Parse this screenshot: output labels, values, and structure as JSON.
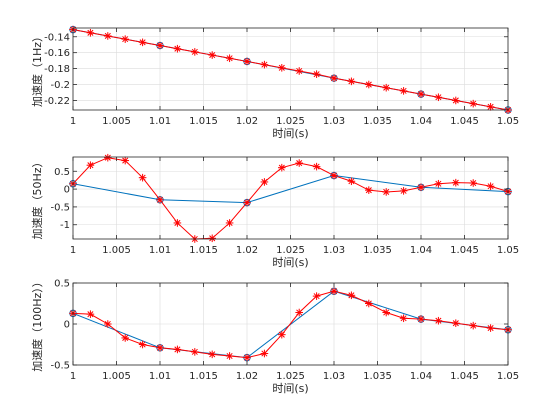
{
  "chart_data": [
    {
      "type": "line",
      "xlabel": "时间(s)",
      "ylabel": "加速度（1Hz）",
      "xlim": [
        1,
        1.05
      ],
      "ylim": [
        -0.232,
        -0.129
      ],
      "xticks": [
        1,
        1.005,
        1.01,
        1.015,
        1.02,
        1.025,
        1.03,
        1.035,
        1.04,
        1.045,
        1.05
      ],
      "xtick_labels": [
        "1",
        "1.005",
        "1.01",
        "1.015",
        "1.02",
        "1.025",
        "1.03",
        "1.035",
        "1.04",
        "1.045",
        "1.05"
      ],
      "yticks": [
        -0.14,
        -0.16,
        -0.18,
        -0.2,
        -0.22
      ],
      "ytick_labels": [
        "-0.14",
        "-0.16",
        "-0.18",
        "-0.2",
        "-0.22"
      ],
      "grid": true,
      "series": [
        {
          "color": "#0072bd",
          "marker": "o",
          "x": [
            1,
            1.01,
            1.02,
            1.03,
            1.04,
            1.05
          ],
          "y": [
            -0.131,
            -0.151,
            -0.171,
            -0.192,
            -0.212,
            -0.232
          ]
        },
        {
          "color": "#ff0000",
          "marker": "*",
          "x": [
            1,
            1.002,
            1.004,
            1.006,
            1.008,
            1.01,
            1.012,
            1.014,
            1.016,
            1.018,
            1.02,
            1.022,
            1.024,
            1.026,
            1.028,
            1.03,
            1.032,
            1.034,
            1.036,
            1.038,
            1.04,
            1.042,
            1.044,
            1.046,
            1.048,
            1.05
          ],
          "y": [
            -0.131,
            -0.135,
            -0.139,
            -0.143,
            -0.147,
            -0.151,
            -0.155,
            -0.159,
            -0.163,
            -0.167,
            -0.171,
            -0.175,
            -0.179,
            -0.183,
            -0.187,
            -0.192,
            -0.196,
            -0.2,
            -0.204,
            -0.208,
            -0.212,
            -0.216,
            -0.22,
            -0.224,
            -0.228,
            -0.232
          ]
        }
      ]
    },
    {
      "type": "line",
      "xlabel": "时间(s)",
      "ylabel": "加速度（50Hz）",
      "xlim": [
        1,
        1.05
      ],
      "ylim": [
        -1.4,
        0.9
      ],
      "xticks": [
        1,
        1.005,
        1.01,
        1.015,
        1.02,
        1.025,
        1.03,
        1.035,
        1.04,
        1.045,
        1.05
      ],
      "xtick_labels": [
        "1",
        "1.005",
        "1.01",
        "1.015",
        "1.02",
        "1.025",
        "1.03",
        "1.035",
        "1.04",
        "1.045",
        "1.05"
      ],
      "yticks": [
        0.5,
        0,
        -0.5,
        -1
      ],
      "ytick_labels": [
        "0.5",
        "0",
        "-0.5",
        "-1"
      ],
      "grid": true,
      "series": [
        {
          "color": "#0072bd",
          "marker": "o",
          "x": [
            1,
            1.01,
            1.02,
            1.03,
            1.04,
            1.05
          ],
          "y": [
            0.15,
            -0.3,
            -0.38,
            0.38,
            0.05,
            -0.07
          ]
        },
        {
          "color": "#ff0000",
          "marker": "*",
          "x": [
            1,
            1.002,
            1.004,
            1.006,
            1.008,
            1.01,
            1.012,
            1.014,
            1.016,
            1.018,
            1.02,
            1.022,
            1.024,
            1.026,
            1.028,
            1.03,
            1.032,
            1.034,
            1.036,
            1.038,
            1.04,
            1.042,
            1.044,
            1.046,
            1.048,
            1.05
          ],
          "y": [
            0.15,
            0.67,
            0.88,
            0.8,
            0.32,
            -0.3,
            -0.95,
            -1.4,
            -1.38,
            -0.95,
            -0.38,
            0.2,
            0.6,
            0.73,
            0.63,
            0.38,
            0.22,
            -0.03,
            -0.08,
            -0.05,
            0.05,
            0.15,
            0.18,
            0.17,
            0.08,
            -0.07
          ]
        }
      ]
    },
    {
      "type": "line",
      "xlabel": "时间(s)",
      "ylabel": "加速度（100Hz））",
      "xlim": [
        1,
        1.05
      ],
      "ylim": [
        -0.5,
        0.5
      ],
      "xticks": [
        1,
        1.005,
        1.01,
        1.015,
        1.02,
        1.025,
        1.03,
        1.035,
        1.04,
        1.045,
        1.05
      ],
      "xtick_labels": [
        "1",
        "1.005",
        "1.01",
        "1.015",
        "1.02",
        "1.025",
        "1.03",
        "1.035",
        "1.04",
        "1.045",
        "1.05"
      ],
      "yticks": [
        0.5,
        0,
        -0.5
      ],
      "ytick_labels": [
        "0.5",
        "0",
        "-0.5"
      ],
      "grid": true,
      "series": [
        {
          "color": "#0072bd",
          "marker": "o",
          "x": [
            1,
            1.01,
            1.02,
            1.03,
            1.04,
            1.05
          ],
          "y": [
            0.13,
            -0.29,
            -0.41,
            0.4,
            0.06,
            -0.07
          ]
        },
        {
          "color": "#ff0000",
          "marker": "*",
          "x": [
            1,
            1.002,
            1.004,
            1.006,
            1.008,
            1.01,
            1.012,
            1.014,
            1.016,
            1.018,
            1.02,
            1.022,
            1.024,
            1.026,
            1.028,
            1.03,
            1.032,
            1.034,
            1.036,
            1.038,
            1.04,
            1.042,
            1.044,
            1.046,
            1.048,
            1.05
          ],
          "y": [
            0.13,
            0.12,
            0.0,
            -0.17,
            -0.25,
            -0.29,
            -0.31,
            -0.34,
            -0.37,
            -0.39,
            -0.41,
            -0.36,
            -0.13,
            0.14,
            0.34,
            0.4,
            0.35,
            0.25,
            0.14,
            0.07,
            0.06,
            0.04,
            0.01,
            -0.02,
            -0.05,
            -0.07
          ]
        }
      ]
    }
  ]
}
